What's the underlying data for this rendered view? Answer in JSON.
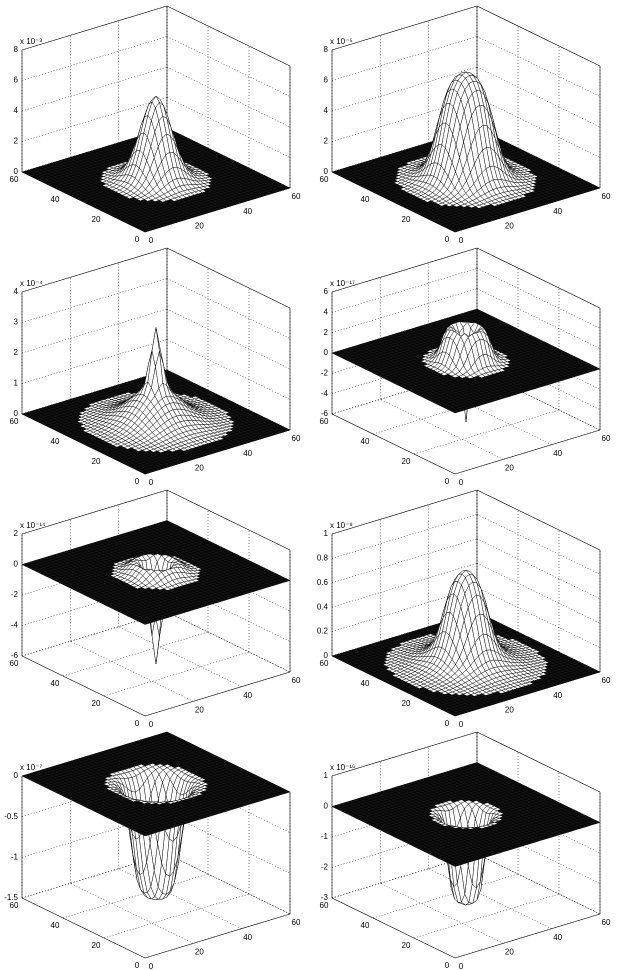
{
  "panels": [
    {
      "exponent_label": "x 10⁻³",
      "zlim": [
        0,
        8
      ],
      "zticks": [
        0,
        2,
        4,
        6,
        8
      ],
      "xticks": [
        0,
        20,
        40,
        60
      ],
      "yticks": [
        0,
        20,
        40,
        60
      ]
    },
    {
      "exponent_label": "x 10⁻⁵",
      "zlim": [
        0,
        8
      ],
      "zticks": [
        0,
        2,
        4,
        6,
        8
      ],
      "xticks": [
        0,
        20,
        40,
        60
      ],
      "yticks": [
        0,
        20,
        40,
        60
      ]
    },
    {
      "exponent_label": "x 10⁻⁴",
      "zlim": [
        0,
        4
      ],
      "zticks": [
        0,
        1,
        2,
        3,
        4
      ],
      "xticks": [
        0,
        20,
        40,
        60
      ],
      "yticks": [
        0,
        20,
        40,
        60
      ]
    },
    {
      "exponent_label": "x 10⁻¹⁷",
      "zlim": [
        -6,
        6
      ],
      "zticks": [
        -6,
        -4,
        -2,
        0,
        2,
        4,
        6
      ],
      "xticks": [
        0,
        20,
        40,
        60
      ],
      "yticks": [
        0,
        20,
        40,
        60
      ]
    },
    {
      "exponent_label": "x 10⁻¹⁴",
      "zlim": [
        -6,
        2
      ],
      "zticks": [
        -6,
        -4,
        -2,
        0,
        2
      ],
      "xticks": [
        0,
        20,
        40,
        60
      ],
      "yticks": [
        0,
        20,
        40,
        60
      ]
    },
    {
      "exponent_label": "x 10⁻⁸",
      "zlim": [
        0,
        1
      ],
      "zticks": [
        0,
        0.2,
        0.4,
        0.6,
        0.8,
        1
      ],
      "xticks": [
        0,
        20,
        40,
        60
      ],
      "yticks": [
        0,
        20,
        40,
        60
      ]
    },
    {
      "exponent_label": "x 10⁻⁷",
      "zlim": [
        -1.5,
        0
      ],
      "zticks": [
        -1.5,
        -1,
        -0.5,
        0
      ],
      "xticks": [
        0,
        20,
        40,
        60
      ],
      "yticks": [
        0,
        20,
        40,
        60
      ]
    },
    {
      "exponent_label": "x 10⁻¹⁶",
      "zlim": [
        -3,
        1
      ],
      "zticks": [
        -3,
        -2,
        -1,
        0,
        1
      ],
      "xticks": [
        0,
        20,
        40,
        60
      ],
      "yticks": [
        0,
        20,
        40,
        60
      ]
    }
  ]
}
